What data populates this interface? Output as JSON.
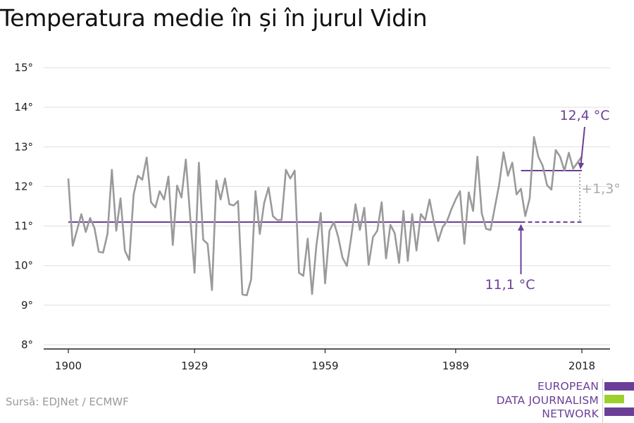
{
  "title": "Temperatura medie în și în jurul Vidin",
  "source": "Sursă: EDJNet / ECMWF",
  "logo": {
    "line1": "EUROPEAN",
    "line2": "DATA JOURNALISM",
    "line3": "NETWORK"
  },
  "colors": {
    "series": "#9a9a9a",
    "average": "#6b3f98",
    "grid": "#dddddd",
    "logo_green": "#9ed02b"
  },
  "chart_data": {
    "type": "line",
    "title": "Temperatura medie în și în jurul Vidin",
    "xlim": [
      1900,
      2018
    ],
    "ylim": [
      8,
      15
    ],
    "y_ticks": [
      8,
      9,
      10,
      11,
      12,
      13,
      14,
      15
    ],
    "y_tick_labels": [
      "8°",
      "9°",
      "10°",
      "11°",
      "12°",
      "13°",
      "14°",
      "15°"
    ],
    "x_ticks": [
      1900,
      1929,
      1959,
      1989,
      2018
    ],
    "x_tick_labels": [
      "1900",
      "1929",
      "1959",
      "1989",
      "2018"
    ],
    "grid": true,
    "series": [
      {
        "x": [
          1900,
          1901,
          1902,
          1903,
          1904,
          1905,
          1906,
          1907,
          1908,
          1909,
          1910,
          1911,
          1912,
          1913,
          1914,
          1915,
          1916,
          1917,
          1918,
          1919,
          1920,
          1921,
          1922,
          1923,
          1924,
          1925,
          1926,
          1927,
          1928,
          1929,
          1930,
          1931,
          1932,
          1933,
          1934,
          1935,
          1936,
          1937,
          1938,
          1939,
          1940,
          1941,
          1942,
          1943,
          1944,
          1945,
          1946,
          1947,
          1948,
          1949,
          1950,
          1951,
          1952,
          1953,
          1954,
          1955,
          1956,
          1957,
          1958,
          1959,
          1960,
          1961,
          1962,
          1963,
          1964,
          1965,
          1966,
          1967,
          1968,
          1969,
          1970,
          1971,
          1972,
          1973,
          1974,
          1975,
          1976,
          1977,
          1978,
          1979,
          1980,
          1981,
          1982,
          1983,
          1984,
          1985,
          1986,
          1987,
          1988,
          1989,
          1990,
          1991,
          1992,
          1993,
          1994,
          1995,
          1996,
          1997,
          1998,
          1999,
          2000,
          2001,
          2002,
          2003,
          2004,
          2005,
          2006,
          2007,
          2008,
          2009,
          2010,
          2011,
          2012,
          2013,
          2014,
          2015,
          2016,
          2017,
          2018
        ],
        "values": [
          12.2,
          10.5,
          10.9,
          11.3,
          10.85,
          11.2,
          10.95,
          10.35,
          10.33,
          10.8,
          12.42,
          10.88,
          11.7,
          10.38,
          10.14,
          11.8,
          12.27,
          12.17,
          12.73,
          11.6,
          11.47,
          11.88,
          11.67,
          12.25,
          10.52,
          12.02,
          11.72,
          12.68,
          11.23,
          9.82,
          12.6,
          10.65,
          10.55,
          9.38,
          12.15,
          11.67,
          12.2,
          11.55,
          11.52,
          11.63,
          9.27,
          9.25,
          9.65,
          11.88,
          10.8,
          11.58,
          11.97,
          11.25,
          11.15,
          11.15,
          12.42,
          12.2,
          12.4,
          9.82,
          9.74,
          10.68,
          9.28,
          10.5,
          11.33,
          9.55,
          10.88,
          11.1,
          10.73,
          10.2,
          9.99,
          10.72,
          11.55,
          10.9,
          11.46,
          10.02,
          10.72,
          10.88,
          11.6,
          10.18,
          11.03,
          10.82,
          10.07,
          11.38,
          10.12,
          11.3,
          10.38,
          11.3,
          11.15,
          11.67,
          11.1,
          10.62,
          10.97,
          11.12,
          11.42,
          11.67,
          11.88,
          10.55,
          11.85,
          11.38,
          12.75,
          11.32,
          10.93,
          10.9,
          11.47,
          12.05,
          12.86,
          12.27,
          12.6,
          11.8,
          11.94,
          11.25,
          11.7,
          13.25,
          12.75,
          12.52,
          12.03,
          11.92,
          12.92,
          12.75,
          12.4,
          12.85,
          12.45,
          12.6,
          12.76
        ]
      }
    ],
    "averages": [
      {
        "label": "11,1 °C",
        "value": 11.1,
        "from": 1900,
        "to": 2018,
        "solid_to": 2004
      },
      {
        "label": "12,4 °C",
        "value": 12.4,
        "from": 2004,
        "to": 2018
      }
    ],
    "difference_label": "+1,3°"
  }
}
